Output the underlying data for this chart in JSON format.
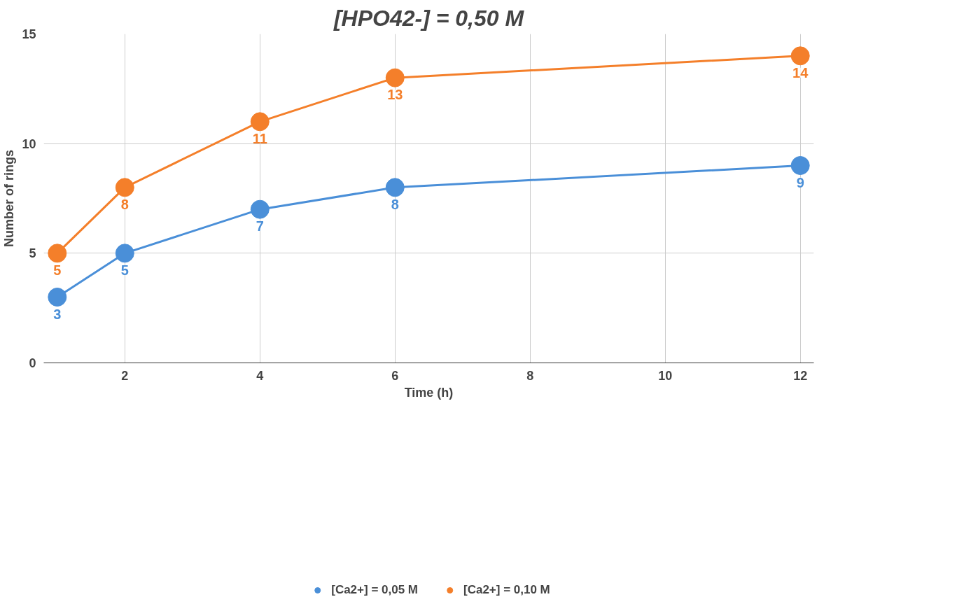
{
  "chart_data": {
    "type": "line",
    "title": "[HPO42-] = 0,50 M",
    "xlabel": "Time (h)",
    "ylabel": "Number of rings",
    "x": [
      1,
      2,
      4,
      6,
      12
    ],
    "series": [
      {
        "name": "[Ca2+] = 0,05 M",
        "color": "#4a8fd8",
        "values": [
          3,
          5,
          7,
          8,
          9
        ]
      },
      {
        "name": "[Ca2+] = 0,10 M",
        "color": "#f47f2a",
        "values": [
          5,
          8,
          11,
          13,
          14
        ]
      }
    ],
    "xlim": [
      0.8,
      12.2
    ],
    "xticks": [
      2,
      4,
      6,
      8,
      10,
      12
    ],
    "ylim": [
      0,
      15
    ],
    "yticks": [
      0,
      5,
      10,
      15
    ],
    "grid": true,
    "legend": "bottom",
    "marker": "circle",
    "line_style": "solid",
    "data_labels": true
  }
}
